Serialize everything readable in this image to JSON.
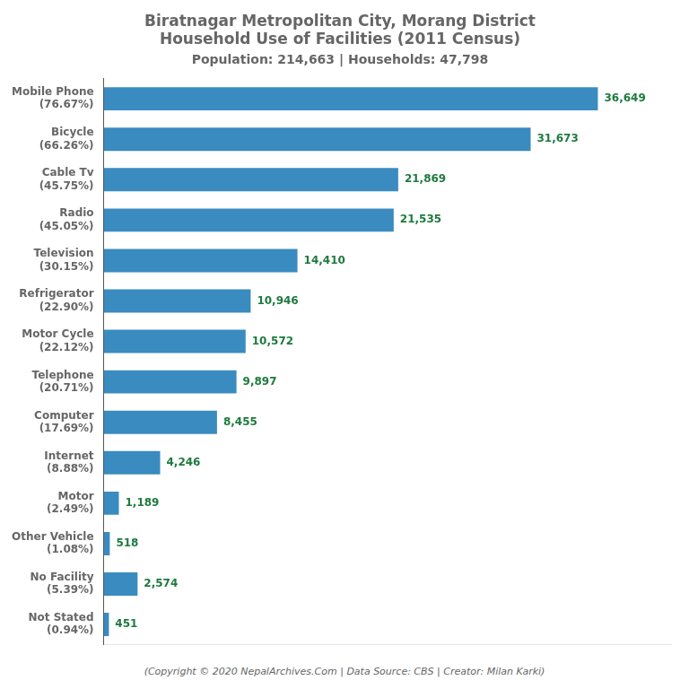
{
  "chart_data": {
    "type": "bar",
    "orientation": "horizontal",
    "title": "Biratnagar Metropolitan City, Morang District\nHousehold Use of Facilities (2011 Census)",
    "subtitle": "Population: 214,663 | Households: 47,798",
    "annotations": [
      "(Copyright © 2020 NepalArchives.Com | Data Source: CBS | Creator: Milan Karki)"
    ],
    "categories": [
      "Mobile Phone\n(76.67%)",
      "Bicycle\n(66.26%)",
      "Cable Tv\n(45.75%)",
      "Radio\n(45.05%)",
      "Television\n(30.15%)",
      "Refrigerator\n(22.90%)",
      "Motor Cycle\n(22.12%)",
      "Telephone\n(20.71%)",
      "Computer\n(17.69%)",
      "Internet\n(8.88%)",
      "Motor\n(2.49%)",
      "Other Vehicle\n(1.08%)",
      "No Facility\n(5.39%)",
      "Not Stated\n(0.94%)"
    ],
    "values": [
      36649,
      31673,
      21869,
      21535,
      14410,
      10946,
      10572,
      9897,
      8455,
      4246,
      1189,
      518,
      2574,
      451
    ],
    "value_labels": [
      "36,649",
      "31,673",
      "21,869",
      "21,535",
      "14,410",
      "10,946",
      "10,572",
      "9,897",
      "8,455",
      "4,246",
      "1,189",
      "518",
      "2,574",
      "451"
    ],
    "data_labels": true,
    "color": "#3a8bbf",
    "xlim": [
      0,
      42000
    ],
    "tick_labels": "y",
    "grid": false
  }
}
